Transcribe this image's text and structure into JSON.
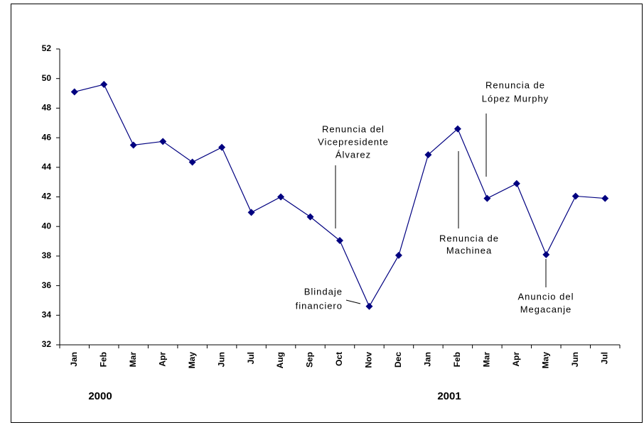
{
  "chart_data": {
    "type": "line",
    "categories": [
      "Jan",
      "Feb",
      "Mar",
      "Apr",
      "May",
      "Jun",
      "Jul",
      "Aug",
      "Sep",
      "Oct",
      "Nov",
      "Dec",
      "Jan",
      "Feb",
      "Mar",
      "Apr",
      "May",
      "Jun",
      "Jul"
    ],
    "series": [
      {
        "color": "#000080",
        "values": [
          49.1,
          49.6,
          45.5,
          45.75,
          44.35,
          45.35,
          40.95,
          42.0,
          40.65,
          39.05,
          34.6,
          38.05,
          44.85,
          46.6,
          41.9,
          42.9,
          38.1,
          42.05,
          41.9
        ]
      }
    ],
    "ylim": [
      32,
      52
    ],
    "yticks": [
      32,
      34,
      36,
      38,
      40,
      42,
      44,
      46,
      48,
      50,
      52
    ],
    "years": [
      "2000",
      "2001"
    ],
    "annotations": [
      {
        "lines": [
          "Renuncia del",
          "Vicepresidente",
          "Álvarez"
        ]
      },
      {
        "lines": [
          "Blindaje",
          "financiero"
        ]
      },
      {
        "lines": [
          "Renuncia de",
          "López Murphy"
        ]
      },
      {
        "lines": [
          "Renuncia de",
          "Machinea"
        ]
      },
      {
        "lines": [
          "Anuncio del",
          "Megacanje"
        ]
      }
    ]
  }
}
